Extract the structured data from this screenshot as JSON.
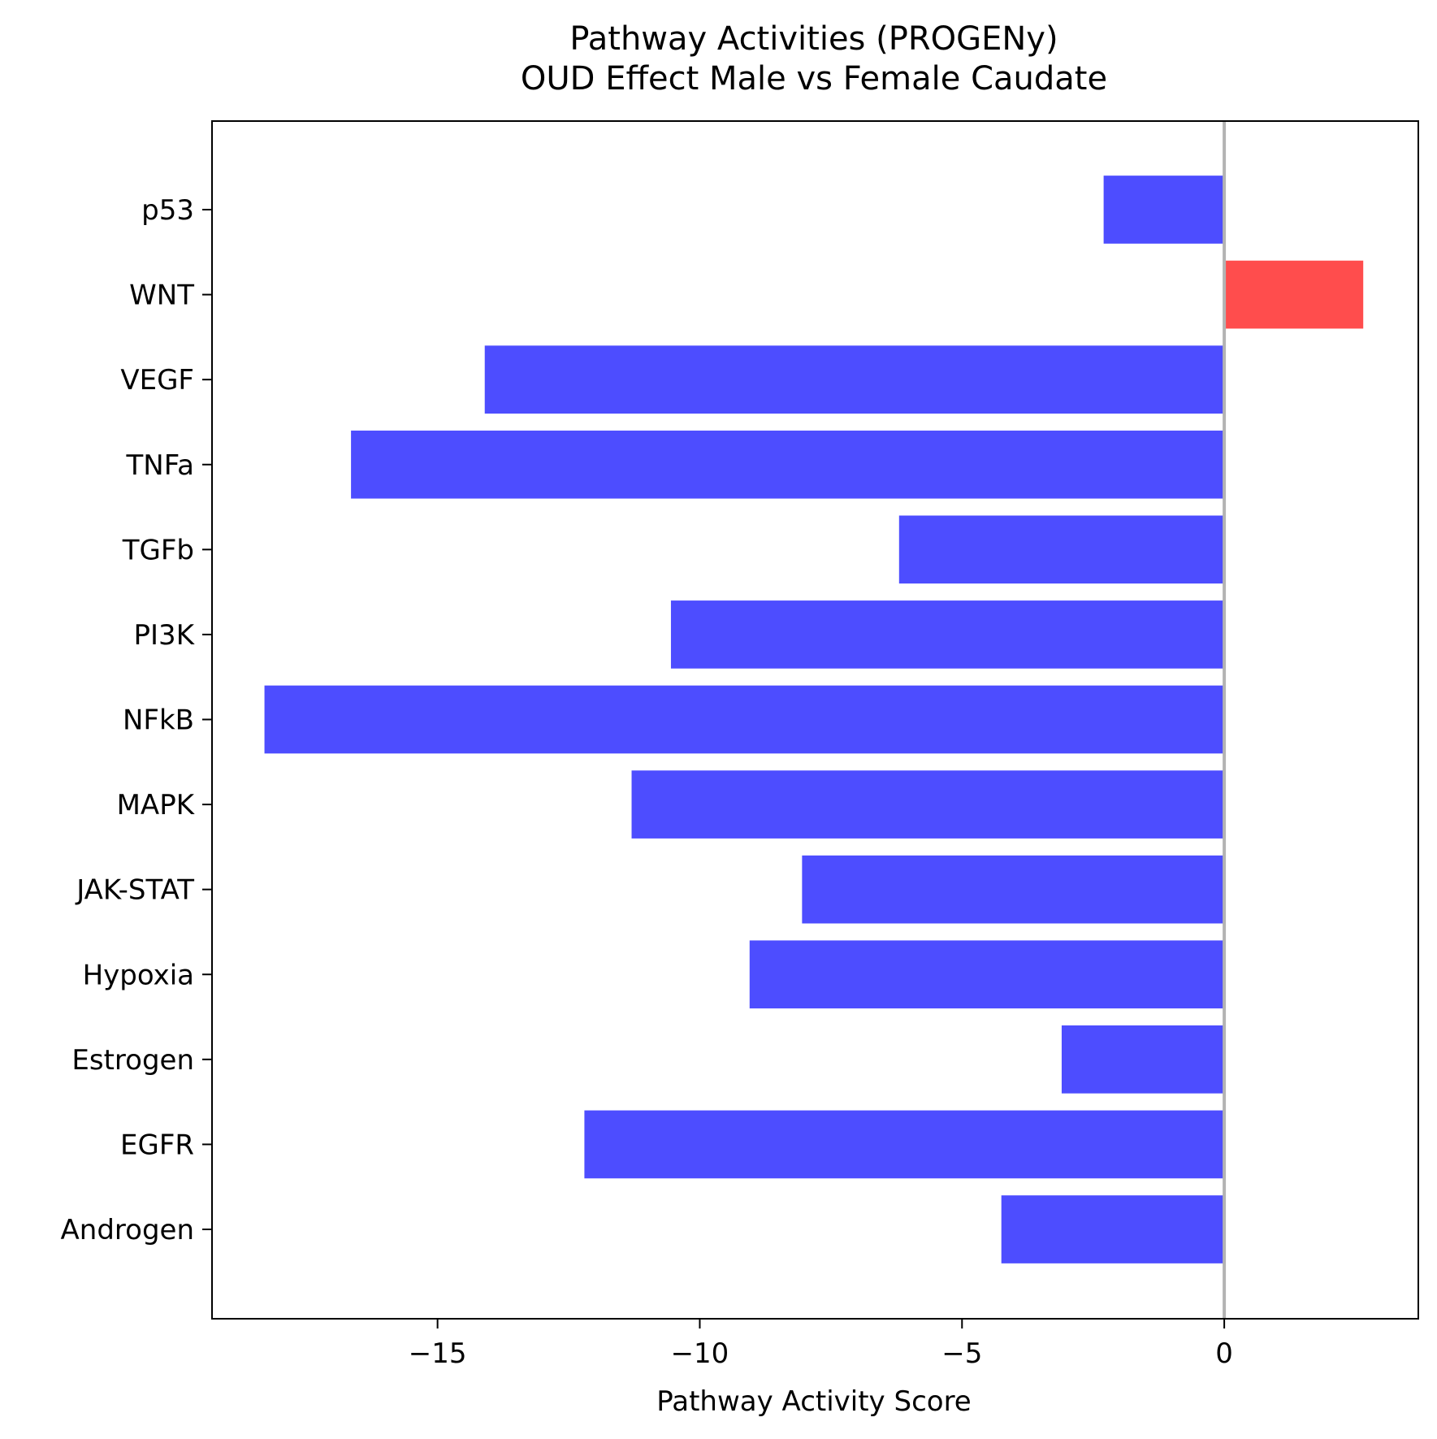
{
  "chart_data": {
    "type": "bar",
    "orientation": "horizontal",
    "title": "Pathway Activities (PROGENy)",
    "subtitle": "OUD Effect Male vs Female Caudate",
    "xlabel": "Pathway Activity Score",
    "ylabel": "",
    "xlim": [
      -19.3,
      3.7
    ],
    "xticks": [
      -15,
      -10,
      -5,
      0
    ],
    "xtick_labels": [
      "−15",
      "−10",
      "−5",
      "0"
    ],
    "categories": [
      "Androgen",
      "EGFR",
      "Estrogen",
      "Hypoxia",
      "JAK-STAT",
      "MAPK",
      "NFkB",
      "PI3K",
      "TGFb",
      "TNFa",
      "VEGF",
      "WNT",
      "p53"
    ],
    "values": [
      -4.25,
      -12.2,
      -3.1,
      -9.05,
      -8.05,
      -11.3,
      -18.3,
      -10.55,
      -6.2,
      -16.65,
      -14.1,
      2.65,
      -2.3
    ],
    "colors": {
      "positive": "#ff4d4d",
      "negative": "#4d4dff",
      "zero_line": "#b3b3b3"
    },
    "grid": false,
    "legend": "none"
  }
}
